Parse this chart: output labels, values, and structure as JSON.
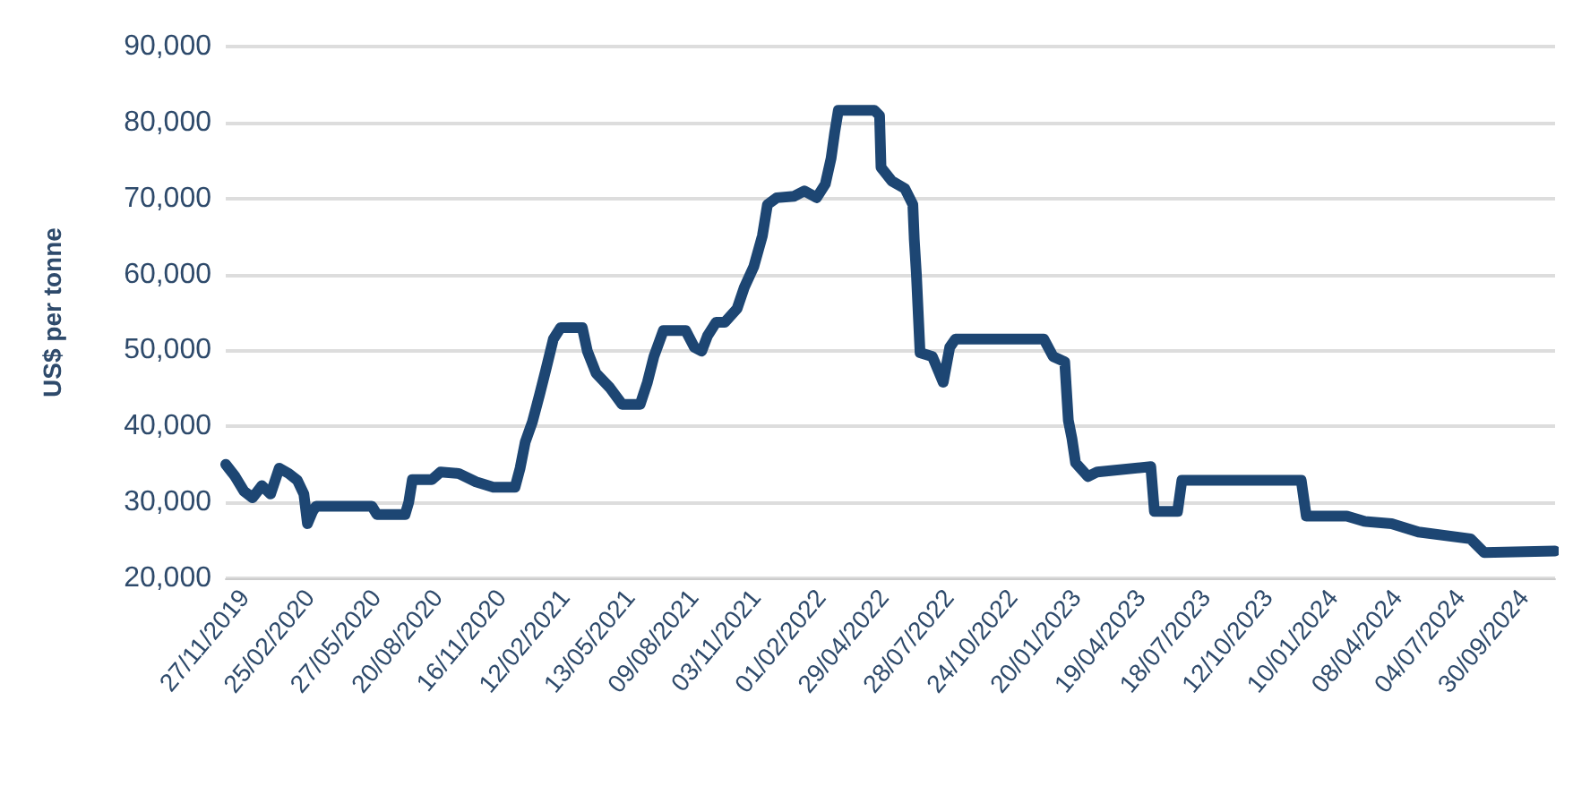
{
  "chart_data": {
    "type": "line",
    "ylabel": "US$ per tonne",
    "x": [
      "2019-11-02",
      "2019-11-15",
      "2019-11-27",
      "2019-12-09",
      "2019-12-22",
      "2020-01-03",
      "2020-01-15",
      "2020-01-28",
      "2020-02-09",
      "2020-02-18",
      "2020-02-23",
      "2020-03-01",
      "2020-03-06",
      "2020-05-22",
      "2020-05-29",
      "2020-07-07",
      "2020-07-12",
      "2020-07-17",
      "2020-08-13",
      "2020-08-25",
      "2020-09-19",
      "2020-10-13",
      "2020-11-06",
      "2020-12-06",
      "2020-12-13",
      "2020-12-20",
      "2020-12-30",
      "2021-01-09",
      "2021-01-18",
      "2021-01-28",
      "2021-02-07",
      "2021-03-09",
      "2021-03-16",
      "2021-03-28",
      "2021-04-16",
      "2021-05-03",
      "2021-05-28",
      "2021-06-07",
      "2021-06-16",
      "2021-06-29",
      "2021-07-30",
      "2021-08-11",
      "2021-08-21",
      "2021-08-29",
      "2021-09-10",
      "2021-09-22",
      "2021-10-09",
      "2021-10-19",
      "2021-11-01",
      "2021-11-13",
      "2021-11-20",
      "2021-12-03",
      "2021-12-27",
      "2022-01-10",
      "2022-01-27",
      "2022-02-08",
      "2022-02-16",
      "2022-02-21",
      "2022-02-26",
      "2022-03-12",
      "2022-04-17",
      "2022-04-24",
      "2022-04-26",
      "2022-05-11",
      "2022-05-29",
      "2022-06-09",
      "2022-06-11",
      "2022-06-14",
      "2022-06-19",
      "2022-07-06",
      "2022-07-21",
      "2022-07-30",
      "2022-08-07",
      "2022-12-07",
      "2022-12-20",
      "2023-01-05",
      "2023-01-10",
      "2023-01-15",
      "2023-01-20",
      "2023-02-06",
      "2023-02-19",
      "2023-05-04",
      "2023-05-09",
      "2023-06-10",
      "2023-06-16",
      "2023-11-28",
      "2023-12-05",
      "2024-01-30",
      "2024-02-23",
      "2024-04-01",
      "2024-05-08",
      "2024-07-19",
      "2024-08-07",
      "2024-11-13"
    ],
    "series": [
      {
        "color": "#1d4673",
        "values": [
          35000,
          33400,
          31500,
          30600,
          32200,
          31100,
          34500,
          33800,
          32900,
          31100,
          27200,
          28800,
          29500,
          29500,
          28400,
          28400,
          30000,
          33000,
          33000,
          34000,
          33800,
          32700,
          32000,
          32000,
          34500,
          37900,
          40600,
          44200,
          47600,
          51500,
          53000,
          53000,
          49900,
          47000,
          45100,
          42900,
          42900,
          45800,
          49200,
          52600,
          52600,
          50400,
          49900,
          51900,
          53700,
          53700,
          55500,
          58300,
          61000,
          65100,
          69200,
          70100,
          70300,
          71000,
          70100,
          71900,
          75300,
          78700,
          81600,
          81600,
          81600,
          80900,
          74100,
          72300,
          71300,
          69200,
          64600,
          59900,
          49700,
          49200,
          45800,
          50400,
          51500,
          51500,
          49200,
          48500,
          40800,
          38400,
          35200,
          33400,
          34000,
          34700,
          28800,
          28800,
          32900,
          32900,
          28200,
          28200,
          27500,
          27200,
          26100,
          25200,
          23400,
          23600
        ]
      }
    ],
    "xlim": [
      "2019-11-02",
      "2024-11-13"
    ],
    "xticks": [
      {
        "value": "2019-11-27",
        "label": "27/11/2019"
      },
      {
        "value": "2020-02-25",
        "label": "25/02/2020"
      },
      {
        "value": "2020-05-27",
        "label": "27/05/2020"
      },
      {
        "value": "2020-08-20",
        "label": "20/08/2020"
      },
      {
        "value": "2020-11-16",
        "label": "16/11/2020"
      },
      {
        "value": "2021-02-12",
        "label": "12/02/2021"
      },
      {
        "value": "2021-05-13",
        "label": "13/05/2021"
      },
      {
        "value": "2021-08-09",
        "label": "09/08/2021"
      },
      {
        "value": "2021-11-03",
        "label": "03/11/2021"
      },
      {
        "value": "2022-02-01",
        "label": "01/02/2022"
      },
      {
        "value": "2022-04-29",
        "label": "29/04/2022"
      },
      {
        "value": "2022-07-28",
        "label": "28/07/2022"
      },
      {
        "value": "2022-10-24",
        "label": "24/10/2022"
      },
      {
        "value": "2023-01-20",
        "label": "20/01/2023"
      },
      {
        "value": "2023-04-19",
        "label": "19/04/2023"
      },
      {
        "value": "2023-07-18",
        "label": "18/07/2023"
      },
      {
        "value": "2023-10-12",
        "label": "12/10/2023"
      },
      {
        "value": "2024-01-10",
        "label": "10/01/2024"
      },
      {
        "value": "2024-04-08",
        "label": "08/04/2024"
      },
      {
        "value": "2024-07-04",
        "label": "04/07/2024"
      },
      {
        "value": "2024-09-30",
        "label": "30/09/2024"
      }
    ],
    "ylim": [
      20000,
      90000
    ],
    "yticks": [
      {
        "value": 20000,
        "label": "20,000"
      },
      {
        "value": 30000,
        "label": "30,000"
      },
      {
        "value": 40000,
        "label": "40,000"
      },
      {
        "value": 50000,
        "label": "50,000"
      },
      {
        "value": 60000,
        "label": "60,000"
      },
      {
        "value": 70000,
        "label": "70,000"
      },
      {
        "value": 80000,
        "label": "80,000"
      },
      {
        "value": 90000,
        "label": "90,000"
      }
    ],
    "grid": "y",
    "marker": "none",
    "line_style": "solid"
  }
}
